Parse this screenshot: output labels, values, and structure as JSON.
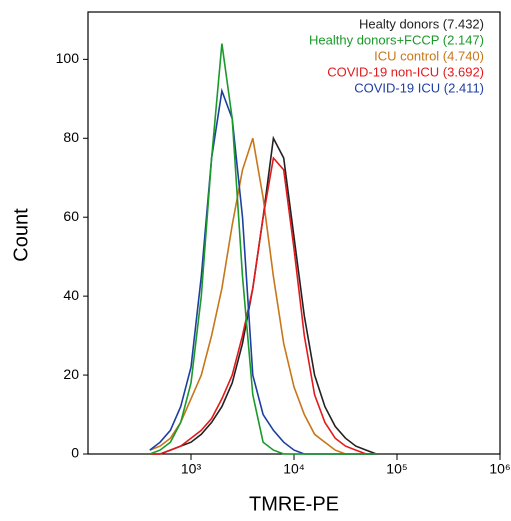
{
  "chart_data": {
    "type": "line",
    "xlabel": "TMRE-PE",
    "ylabel": "Count",
    "x": [
      398,
      501,
      631,
      794,
      1000,
      1259,
      1585,
      1995,
      2512,
      3162,
      3981,
      5012,
      6310,
      7943,
      10000,
      12589,
      15849,
      19953,
      25119,
      31623,
      39811,
      50119,
      63096
    ],
    "series": [
      {
        "name": "Healty donors (7.432)",
        "color": "#222222",
        "values": [
          0,
          0,
          1,
          2,
          3,
          5,
          8,
          12,
          18,
          28,
          42,
          60,
          80,
          75,
          55,
          35,
          20,
          12,
          7,
          4,
          2,
          1,
          0
        ]
      },
      {
        "name": "Healthy donors+FCCP (2.147)",
        "color": "#1a9a2a",
        "values": [
          0,
          1,
          3,
          8,
          18,
          40,
          75,
          104,
          85,
          45,
          15,
          3,
          1,
          0,
          0,
          0,
          0,
          0,
          0,
          0,
          0,
          0,
          0
        ]
      },
      {
        "name": "ICU control (4.740)",
        "color": "#c8761a",
        "values": [
          1,
          2,
          4,
          8,
          14,
          20,
          30,
          42,
          58,
          72,
          80,
          65,
          45,
          28,
          17,
          10,
          5,
          3,
          1,
          0,
          0,
          0,
          0
        ]
      },
      {
        "name": "COVID-19 non-ICU (3.692)",
        "color": "#e31a1c",
        "values": [
          0,
          0,
          1,
          2,
          4,
          6,
          9,
          14,
          20,
          30,
          42,
          60,
          75,
          72,
          52,
          30,
          15,
          8,
          4,
          2,
          1,
          0,
          0
        ]
      },
      {
        "name": "COVID-19 ICU (2.411)",
        "color": "#1f3fa0",
        "values": [
          1,
          3,
          6,
          12,
          22,
          45,
          75,
          92,
          85,
          60,
          20,
          10,
          6,
          3,
          1,
          0,
          0,
          0,
          0,
          0,
          0,
          0,
          0
        ]
      }
    ],
    "xlog": true,
    "xlim": [
      100,
      1000000
    ],
    "xticks": [
      {
        "value": 1000,
        "label": "10³"
      },
      {
        "value": 10000,
        "label": "10⁴"
      },
      {
        "value": 100000,
        "label": "10⁵"
      },
      {
        "value": 1000000,
        "label": "10⁶"
      }
    ],
    "ylim": [
      0,
      112
    ],
    "yticks": [
      0,
      20,
      40,
      60,
      80,
      100
    ],
    "legend": "top-right"
  }
}
